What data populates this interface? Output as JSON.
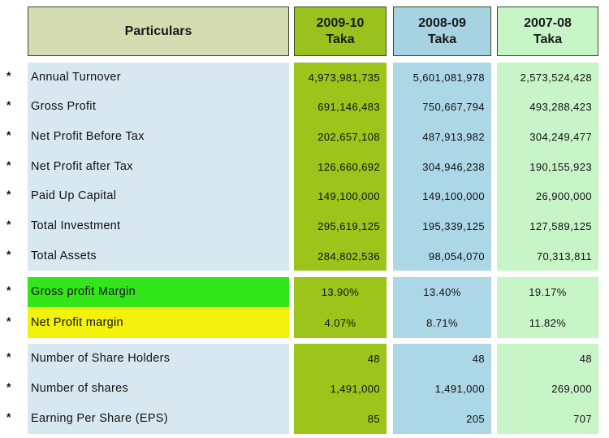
{
  "header": {
    "particulars": "Particulars",
    "columns": [
      {
        "year": "2009-10",
        "unit": "Taka"
      },
      {
        "year": "2008-09",
        "unit": "Taka"
      },
      {
        "year": "2007-08",
        "unit": "Taka"
      }
    ]
  },
  "bullet": "*",
  "colors": {
    "gross_margin_highlight": "#33e619",
    "net_margin_highlight": "#f2f20c"
  },
  "rows": [
    {
      "label": "Annual Turnover",
      "values": [
        "4,973,981,735",
        "5,601,081,978",
        "2,573,524,428"
      ]
    },
    {
      "label": "Gross Profit",
      "values": [
        "691,146,483",
        "750,667,794",
        "493,288,423"
      ]
    },
    {
      "label": "Net Profit Before Tax",
      "values": [
        "202,657,108",
        "487,913,982",
        "304,249,477"
      ]
    },
    {
      "label": "Net Profit after Tax",
      "values": [
        "126,660,692",
        "304,946,238",
        "190,155,923"
      ]
    },
    {
      "label": "Paid Up Capital",
      "values": [
        "149,100,000",
        "149,100,000",
        "26,900,000"
      ]
    },
    {
      "label": "Total Investment",
      "values": [
        "295,619,125",
        "195,339,125",
        "127,589,125"
      ]
    },
    {
      "label": "Total Assets",
      "values": [
        "284,802,536",
        "98,054,070",
        "70,313,811"
      ]
    },
    {
      "label": "Gross profit Margin",
      "values": [
        "13.90%",
        "13.40%",
        "19.17%"
      ]
    },
    {
      "label": "Net Profit margin",
      "values": [
        "4.07%",
        "8.71%",
        "11.82%"
      ]
    },
    {
      "label": "Number of Share Holders",
      "values": [
        "48",
        "48",
        "48"
      ]
    },
    {
      "label": "Number of shares",
      "values": [
        "1,491,000",
        "1,491,000",
        "269,000"
      ]
    },
    {
      "label": "Earning Per Share (EPS)",
      "values": [
        "85",
        "205",
        "707"
      ]
    }
  ]
}
